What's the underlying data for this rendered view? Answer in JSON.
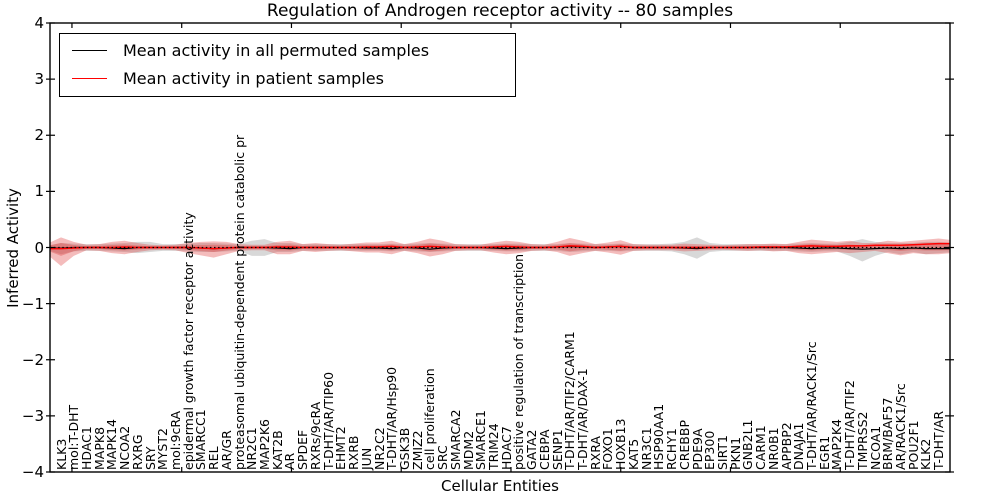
{
  "chart_data": {
    "type": "area",
    "title": "Regulation of Androgen receptor activity -- 80 samples",
    "sample_count": 80,
    "xlabel": "Cellular Entities",
    "ylabel": "Inferred Activity",
    "ylim": [
      -4,
      4
    ],
    "yticks": [
      4,
      3,
      2,
      1,
      0,
      -1,
      -2,
      -3,
      -4
    ],
    "grid": false,
    "legend_position": "upper left",
    "legend": [
      {
        "label": "Mean activity in all permuted samples",
        "color": "#000000"
      },
      {
        "label": "Mean activity in patient samples",
        "color": "#ff0000"
      }
    ],
    "reference_line": {
      "y": 0,
      "style": "dotted",
      "color": "#000000"
    },
    "categories": [
      "KLK3",
      "mol:T-DHT",
      "HDAC1",
      "MAPK8",
      "MAPK14",
      "NCOA2",
      "RXRG",
      "SRY",
      "MYST2",
      "mol:9cRA",
      "epidermal growth factor receptor activity",
      "SMARCC1",
      "REL",
      "AR/GR",
      "proteasomal ubiquitin-dependent protein catabolic pr",
      "NR2C1",
      "MAP2K6",
      "KAT2B",
      "AR",
      "SPDEF",
      "RXRs/9cRA",
      "T-DHT/AR/TIP60",
      "EHMT2",
      "RXRB",
      "JUN",
      "NR2C2",
      "T-DHT/AR/Hsp90",
      "GSK3B",
      "ZMIZ2",
      "cell proliferation",
      "SRC",
      "SMARCA2",
      "MDM2",
      "SMARCE1",
      "TRIM24",
      "HDAC7",
      "positive regulation of transcription",
      "GATA2",
      "CEBPA",
      "SENP1",
      "T-DHT/AR/TIF2/CARM1",
      "T-DHT/AR/DAX-1",
      "RXRA",
      "FOXO1",
      "HOXB13",
      "KAT5",
      "NR3C1",
      "HSP90AA1",
      "RCHY1",
      "CREBBP",
      "PDE9A",
      "EP300",
      "SIRT1",
      "PKN1",
      "GNB2L1",
      "CARM1",
      "NR0B1",
      "APPBP2",
      "DNAJA1",
      "T-DHT/AR/RACK1/Src",
      "EGR1",
      "MAP2K4",
      "T-DHT/AR/TIF2",
      "TMPRSS2",
      "NCOA1",
      "BRM/BAF57",
      "AR/RACK1/Src",
      "POU2F1",
      "KLK2",
      "T-DHT/AR"
    ],
    "bands": [
      {
        "name": "permuted-spread-band",
        "color": "#a8a8a8",
        "opacity": 0.45,
        "core_scale": null,
        "upper": [
          0.08,
          0.07,
          0.06,
          0.06,
          0.07,
          0.08,
          0.1,
          0.1,
          0.06,
          0.06,
          0.07,
          0.08,
          0.08,
          0.07,
          0.06,
          0.12,
          0.15,
          0.08,
          0.08,
          0.06,
          0.06,
          0.06,
          0.06,
          0.06,
          0.06,
          0.06,
          0.07,
          0.06,
          0.07,
          0.08,
          0.07,
          0.06,
          0.06,
          0.06,
          0.06,
          0.07,
          0.07,
          0.06,
          0.06,
          0.06,
          0.08,
          0.07,
          0.06,
          0.06,
          0.07,
          0.06,
          0.06,
          0.06,
          0.07,
          0.1,
          0.18,
          0.08,
          0.06,
          0.06,
          0.06,
          0.06,
          0.06,
          0.06,
          0.07,
          0.08,
          0.07,
          0.07,
          0.1,
          0.15,
          0.1,
          0.08,
          0.08,
          0.08,
          0.1,
          0.1
        ],
        "lower": [
          0.12,
          0.07,
          0.06,
          0.06,
          0.07,
          0.08,
          0.1,
          0.08,
          0.06,
          0.06,
          0.07,
          0.08,
          0.08,
          0.07,
          0.06,
          0.15,
          0.15,
          0.08,
          0.08,
          0.06,
          0.06,
          0.06,
          0.06,
          0.06,
          0.06,
          0.06,
          0.07,
          0.06,
          0.07,
          0.08,
          0.07,
          0.06,
          0.06,
          0.06,
          0.06,
          0.07,
          0.07,
          0.06,
          0.06,
          0.06,
          0.08,
          0.07,
          0.06,
          0.06,
          0.07,
          0.06,
          0.06,
          0.06,
          0.07,
          0.12,
          0.2,
          0.08,
          0.06,
          0.06,
          0.06,
          0.06,
          0.06,
          0.06,
          0.07,
          0.08,
          0.07,
          0.07,
          0.15,
          0.25,
          0.15,
          0.08,
          0.12,
          0.08,
          0.12,
          0.1
        ]
      },
      {
        "name": "patient-spread-band",
        "color": "#dd3333",
        "opacity": 0.33,
        "core_scale": 0.45,
        "upper": [
          0.18,
          0.1,
          0.05,
          0.06,
          0.1,
          0.12,
          0.08,
          0.05,
          0.04,
          0.05,
          0.08,
          0.1,
          0.11,
          0.1,
          0.06,
          0.05,
          0.05,
          0.1,
          0.12,
          0.06,
          0.08,
          0.06,
          0.05,
          0.07,
          0.09,
          0.09,
          0.12,
          0.06,
          0.1,
          0.16,
          0.12,
          0.06,
          0.05,
          0.05,
          0.09,
          0.12,
          0.1,
          0.06,
          0.05,
          0.1,
          0.17,
          0.12,
          0.06,
          0.09,
          0.13,
          0.06,
          0.05,
          0.05,
          0.05,
          0.07,
          0.06,
          0.05,
          0.04,
          0.05,
          0.06,
          0.06,
          0.07,
          0.06,
          0.1,
          0.14,
          0.12,
          0.1,
          0.12,
          0.08,
          0.08,
          0.12,
          0.1,
          0.12,
          0.14,
          0.16
        ],
        "lower": [
          0.33,
          0.15,
          0.05,
          0.06,
          0.1,
          0.12,
          0.08,
          0.05,
          0.04,
          0.05,
          0.1,
          0.14,
          0.18,
          0.12,
          0.06,
          0.05,
          0.05,
          0.12,
          0.12,
          0.06,
          0.08,
          0.06,
          0.05,
          0.07,
          0.09,
          0.09,
          0.12,
          0.06,
          0.1,
          0.16,
          0.12,
          0.06,
          0.05,
          0.05,
          0.09,
          0.12,
          0.1,
          0.06,
          0.05,
          0.08,
          0.15,
          0.1,
          0.06,
          0.09,
          0.13,
          0.06,
          0.05,
          0.05,
          0.05,
          0.07,
          0.06,
          0.05,
          0.04,
          0.05,
          0.06,
          0.05,
          0.07,
          0.06,
          0.1,
          0.12,
          0.1,
          0.08,
          0.1,
          0.08,
          0.06,
          0.1,
          0.14,
          0.1,
          0.12,
          0.12
        ]
      }
    ],
    "lines": [
      {
        "name": "Mean activity in all permuted samples",
        "color": "#000000",
        "width": 1.2,
        "values": [
          -0.01,
          0,
          0,
          0,
          -0.01,
          -0.02,
          0,
          0,
          0,
          0,
          0,
          -0.01,
          -0.02,
          -0.01,
          0,
          0,
          0,
          -0.01,
          -0.02,
          0,
          0,
          0,
          0,
          0,
          -0.01,
          -0.01,
          -0.02,
          0,
          -0.01,
          -0.03,
          -0.01,
          0,
          0,
          0,
          -0.01,
          -0.02,
          -0.01,
          0,
          0,
          0.01,
          0.02,
          0.01,
          0,
          0.01,
          0.02,
          0,
          0,
          0,
          0,
          -0.01,
          -0.02,
          0,
          0,
          0,
          0,
          0,
          0,
          0,
          -0.01,
          -0.02,
          -0.01,
          -0.01,
          -0.02,
          -0.03,
          -0.02,
          -0.01,
          -0.02,
          -0.01,
          -0.02,
          -0.02
        ]
      },
      {
        "name": "Mean activity in patient samples",
        "color": "#ff0000",
        "width": 1.5,
        "values": [
          -0.02,
          -0.01,
          0,
          0,
          0,
          0.01,
          0,
          0,
          0,
          0,
          0,
          -0.01,
          -0.02,
          -0.01,
          0,
          0,
          0,
          0.01,
          0.01,
          0,
          0,
          0,
          0,
          0,
          0.01,
          0.01,
          0.02,
          0,
          0.01,
          0.02,
          0.01,
          0,
          0,
          0,
          0.01,
          0.02,
          0.01,
          0,
          0,
          0.01,
          0.03,
          0.02,
          0,
          0.01,
          0.02,
          0,
          0,
          0,
          0,
          0,
          0,
          0,
          0,
          0,
          0,
          0.01,
          0.01,
          0.01,
          0.02,
          0.03,
          0.02,
          0.02,
          0.03,
          0.03,
          0.04,
          0.04,
          0.04,
          0.05,
          0.06,
          0.07
        ]
      }
    ]
  }
}
